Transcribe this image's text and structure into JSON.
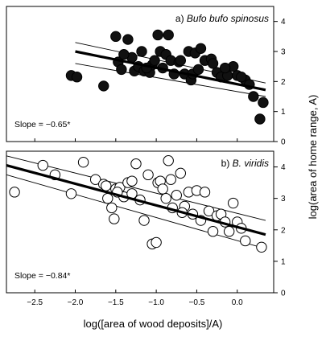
{
  "chart_data": [
    {
      "type": "scatter",
      "panel": "a",
      "title_prefix": "a) ",
      "title_species": "Bufo bufo spinosus",
      "slope_label": "Slope = −0.65*",
      "xlim": [
        -2.85,
        0.45
      ],
      "ylim": [
        0,
        4.5
      ],
      "yticks": [
        0,
        1,
        2,
        3,
        4
      ],
      "ytick_labels": [
        "0",
        "1",
        "2",
        "3",
        "4"
      ],
      "marker": "filled",
      "regression": {
        "x": [
          -2.0,
          0.35
        ],
        "y": [
          3.0,
          1.72
        ]
      },
      "ci_upper": {
        "x": [
          -2.0,
          0.35
        ],
        "y": [
          3.3,
          1.95
        ]
      },
      "ci_lower": {
        "x": [
          -2.0,
          0.35
        ],
        "y": [
          2.6,
          1.5
        ]
      },
      "points": [
        {
          "x": -2.05,
          "y": 2.2
        },
        {
          "x": -1.98,
          "y": 2.15
        },
        {
          "x": -1.65,
          "y": 1.85
        },
        {
          "x": -1.5,
          "y": 3.5
        },
        {
          "x": -1.47,
          "y": 2.65
        },
        {
          "x": -1.43,
          "y": 2.4
        },
        {
          "x": -1.35,
          "y": 3.4
        },
        {
          "x": -1.3,
          "y": 2.8
        },
        {
          "x": -1.27,
          "y": 2.35
        },
        {
          "x": -1.22,
          "y": 2.5
        },
        {
          "x": -1.18,
          "y": 3.0
        },
        {
          "x": -1.15,
          "y": 2.35
        },
        {
          "x": -1.08,
          "y": 2.3
        },
        {
          "x": -1.05,
          "y": 2.55
        },
        {
          "x": -1.02,
          "y": 2.7
        },
        {
          "x": -0.98,
          "y": 3.55
        },
        {
          "x": -0.95,
          "y": 3.0
        },
        {
          "x": -0.92,
          "y": 2.45
        },
        {
          "x": -0.88,
          "y": 2.9
        },
        {
          "x": -0.85,
          "y": 3.55
        },
        {
          "x": -0.82,
          "y": 2.7
        },
        {
          "x": -0.78,
          "y": 2.25
        },
        {
          "x": -0.72,
          "y": 2.65
        },
        {
          "x": -0.65,
          "y": 2.25
        },
        {
          "x": -0.6,
          "y": 3.0
        },
        {
          "x": -0.57,
          "y": 2.05
        },
        {
          "x": -0.55,
          "y": 2.25
        },
        {
          "x": -0.52,
          "y": 2.95
        },
        {
          "x": -0.48,
          "y": 2.4
        },
        {
          "x": -0.45,
          "y": 3.1
        },
        {
          "x": -0.4,
          "y": 2.7
        },
        {
          "x": -0.32,
          "y": 2.75
        },
        {
          "x": -0.25,
          "y": 2.3
        },
        {
          "x": -0.2,
          "y": 2.15
        },
        {
          "x": -0.12,
          "y": 2.2
        },
        {
          "x": -0.05,
          "y": 2.5
        },
        {
          "x": 0.0,
          "y": 2.2
        },
        {
          "x": 0.1,
          "y": 2.05
        },
        {
          "x": 0.15,
          "y": 1.9
        },
        {
          "x": 0.2,
          "y": 1.5
        },
        {
          "x": 0.28,
          "y": 0.75
        },
        {
          "x": 0.32,
          "y": 1.3
        },
        {
          "x": -0.3,
          "y": 2.6
        },
        {
          "x": -0.7,
          "y": 2.7
        },
        {
          "x": -1.12,
          "y": 2.45
        },
        {
          "x": -1.4,
          "y": 2.9
        },
        {
          "x": -0.15,
          "y": 2.45
        },
        {
          "x": 0.05,
          "y": 2.15
        }
      ]
    },
    {
      "type": "scatter",
      "panel": "b",
      "title_prefix": "b) ",
      "title_species": "B. viridis",
      "slope_label": "Slope = −0.84*",
      "xlim": [
        -2.85,
        0.45
      ],
      "ylim": [
        0,
        4.5
      ],
      "yticks": [
        0,
        1,
        2,
        3,
        4
      ],
      "ytick_labels": [
        "0",
        "1",
        "2",
        "3",
        "4"
      ],
      "marker": "open",
      "regression": {
        "x": [
          -2.85,
          0.35
        ],
        "y": [
          4.05,
          1.85
        ]
      },
      "ci_upper": {
        "x": [
          -2.85,
          0.35
        ],
        "y": [
          4.35,
          2.3
        ]
      },
      "ci_lower": {
        "x": [
          -2.85,
          0.35
        ],
        "y": [
          3.75,
          1.4
        ]
      },
      "points": [
        {
          "x": -2.75,
          "y": 3.2
        },
        {
          "x": -2.4,
          "y": 4.05
        },
        {
          "x": -2.25,
          "y": 3.75
        },
        {
          "x": -2.05,
          "y": 3.15
        },
        {
          "x": -1.9,
          "y": 4.15
        },
        {
          "x": -1.75,
          "y": 3.6
        },
        {
          "x": -1.65,
          "y": 3.45
        },
        {
          "x": -1.6,
          "y": 3.0
        },
        {
          "x": -1.55,
          "y": 2.7
        },
        {
          "x": -1.5,
          "y": 3.3
        },
        {
          "x": -1.45,
          "y": 3.35
        },
        {
          "x": -1.4,
          "y": 3.05
        },
        {
          "x": -1.35,
          "y": 3.5
        },
        {
          "x": -1.3,
          "y": 3.15
        },
        {
          "x": -1.25,
          "y": 4.1
        },
        {
          "x": -1.2,
          "y": 2.95
        },
        {
          "x": -1.15,
          "y": 2.3
        },
        {
          "x": -1.1,
          "y": 3.75
        },
        {
          "x": -1.05,
          "y": 1.55
        },
        {
          "x": -1.0,
          "y": 1.6
        },
        {
          "x": -0.98,
          "y": 3.5
        },
        {
          "x": -0.95,
          "y": 3.55
        },
        {
          "x": -0.92,
          "y": 3.3
        },
        {
          "x": -0.88,
          "y": 3.0
        },
        {
          "x": -0.85,
          "y": 4.2
        },
        {
          "x": -0.82,
          "y": 3.6
        },
        {
          "x": -0.8,
          "y": 2.7
        },
        {
          "x": -0.75,
          "y": 3.1
        },
        {
          "x": -0.7,
          "y": 3.8
        },
        {
          "x": -0.65,
          "y": 2.75
        },
        {
          "x": -0.6,
          "y": 3.2
        },
        {
          "x": -0.55,
          "y": 2.5
        },
        {
          "x": -0.5,
          "y": 3.25
        },
        {
          "x": -0.45,
          "y": 2.3
        },
        {
          "x": -0.4,
          "y": 3.2
        },
        {
          "x": -0.35,
          "y": 2.6
        },
        {
          "x": -0.3,
          "y": 1.95
        },
        {
          "x": -0.25,
          "y": 2.45
        },
        {
          "x": -0.2,
          "y": 2.5
        },
        {
          "x": -0.15,
          "y": 2.25
        },
        {
          "x": -0.1,
          "y": 1.95
        },
        {
          "x": -0.05,
          "y": 2.85
        },
        {
          "x": 0.0,
          "y": 2.25
        },
        {
          "x": 0.05,
          "y": 2.05
        },
        {
          "x": 0.1,
          "y": 1.65
        },
        {
          "x": 0.3,
          "y": 1.45
        },
        {
          "x": -1.62,
          "y": 3.4
        },
        {
          "x": -1.52,
          "y": 2.35
        },
        {
          "x": -0.68,
          "y": 2.55
        },
        {
          "x": -1.3,
          "y": 3.55
        },
        {
          "x": -1.48,
          "y": 3.2
        }
      ]
    }
  ],
  "shared": {
    "xlabel": "log([area of wood deposits]/A)",
    "ylabel": "log(area of home range, A)",
    "xticks": [
      -2.5,
      -2.0,
      -1.5,
      -1.0,
      -0.5,
      0.0
    ],
    "xtick_labels": [
      "−2.5",
      "−2.0",
      "−1.5",
      "−1.0",
      "−0.5",
      "0.0"
    ]
  }
}
